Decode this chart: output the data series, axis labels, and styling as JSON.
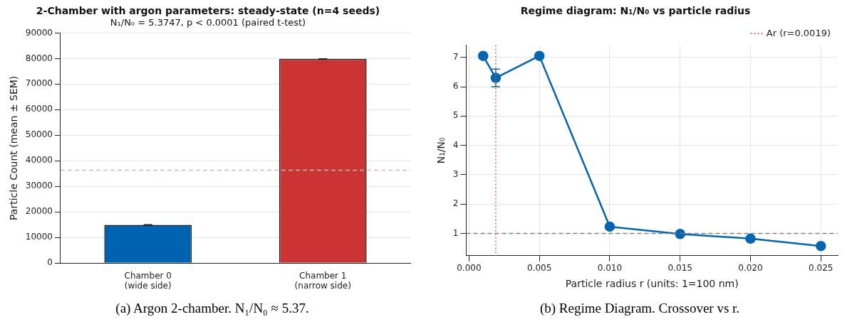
{
  "chart_data": [
    {
      "type": "bar",
      "title": "2-Chamber with argon parameters: steady-state (n=4 seeds)",
      "subtitle": "N₁/N₀ = 5.3747, p < 0.0001 (paired t-test)",
      "ylabel": "Particle Count (mean ± SEM)",
      "categories": [
        "Chamber 0\n(wide side)",
        "Chamber 1\n(narrow side)"
      ],
      "values": [
        14900,
        79800
      ],
      "errors": [
        100,
        100
      ],
      "colors": [
        "#0063b1",
        "#cc3333"
      ],
      "ylim": [
        0,
        90000
      ],
      "yticks": [
        0,
        10000,
        20000,
        30000,
        40000,
        50000,
        60000,
        70000,
        80000,
        90000
      ],
      "grid": "y",
      "ref_lines": [
        {
          "axis": "y",
          "value": 36300,
          "color": "#c0c0c0",
          "line_style": "dashed"
        }
      ],
      "annotations": [
        "(a) Argon 2-chamber. N₁/N₀ ≈ 5.37."
      ]
    },
    {
      "type": "line",
      "title": "Regime diagram: N₁/N₀ vs particle radius",
      "xlabel": "Particle radius r (units: 1=100 nm)",
      "ylabel": "N₁/N₀",
      "x": [
        0.001,
        0.0019,
        0.005,
        0.01,
        0.015,
        0.02,
        0.025
      ],
      "series": [
        {
          "color": "#0066b3",
          "values": [
            7.05,
            6.3,
            7.05,
            1.23,
            0.98,
            0.82,
            0.57
          ],
          "errors": [
            0.05,
            0.3,
            0.05,
            null,
            null,
            null,
            null
          ]
        }
      ],
      "xlim": [
        -0.0002,
        0.0262
      ],
      "xticks": [
        {
          "value": 0,
          "label": "0.000"
        },
        {
          "value": 0.005,
          "label": "0.005"
        },
        {
          "value": 0.01,
          "label": "0.010"
        },
        {
          "value": 0.015,
          "label": "0.015"
        },
        {
          "value": 0.02,
          "label": "0.020"
        },
        {
          "value": 0.025,
          "label": "0.025"
        }
      ],
      "ylim": [
        0.24,
        7.41
      ],
      "yticks": [
        1,
        2,
        3,
        4,
        5,
        6,
        7
      ],
      "grid": true,
      "marker": "circle",
      "legend": "top right",
      "ref_lines": [
        {
          "axis": "x",
          "value": 0.0019,
          "label": "Ar (r=0.0019)",
          "color": "#e06060",
          "line_style": "dotted"
        },
        {
          "axis": "y",
          "value": 1,
          "color": "#808080",
          "line_style": "dashed"
        }
      ],
      "annotations": [
        "(b) Regime Diagram. Crossover vs r."
      ]
    }
  ]
}
